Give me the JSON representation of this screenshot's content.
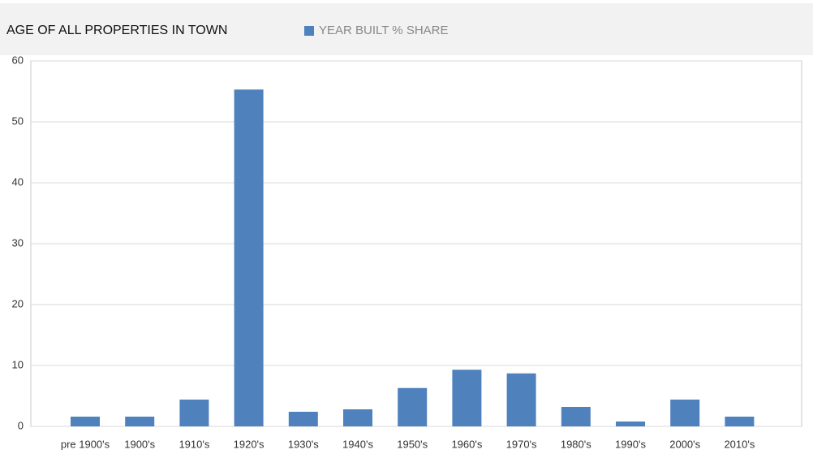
{
  "chart_data": {
    "type": "bar",
    "title": "AGE OF ALL PROPERTIES IN TOWN",
    "categories": [
      "pre 1900's",
      "1900's",
      "1910's",
      "1920's",
      "1930's",
      "1940's",
      "1950's",
      "1960's",
      "1970's",
      "1980's",
      "1990's",
      "2000's",
      "2010's"
    ],
    "series": [
      {
        "name": "YEAR BUILT % SHARE",
        "color": "#4f81bd",
        "values": [
          1.6,
          1.6,
          4.4,
          55.3,
          2.4,
          2.8,
          6.3,
          9.3,
          8.7,
          3.2,
          0.8,
          4.4,
          1.6
        ]
      }
    ],
    "ylim": [
      0,
      60
    ],
    "yticks": [
      0,
      10,
      20,
      30,
      40,
      50,
      60
    ],
    "grid": true
  }
}
